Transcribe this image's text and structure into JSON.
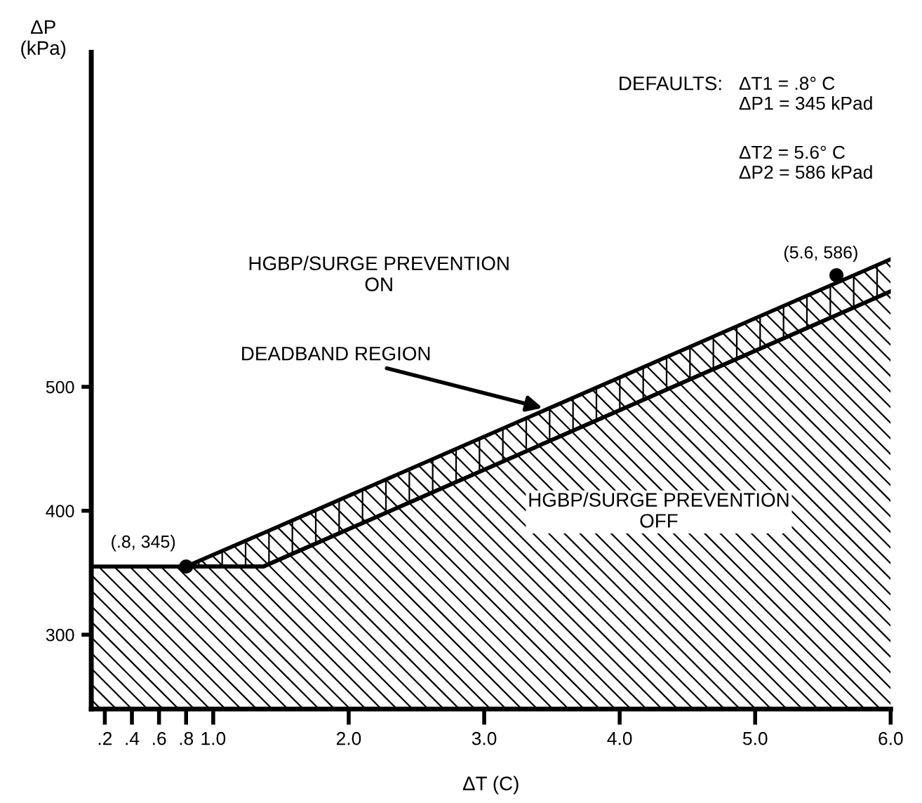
{
  "chart_data": {
    "type": "area",
    "xlabel": "ΔT (C)",
    "ylabel": "ΔP\n(kPa)",
    "xlim": [
      0.1,
      6.0
    ],
    "ylim": [
      240,
      770
    ],
    "xticks": [
      {
        "value": 0.2,
        "label": ".2"
      },
      {
        "value": 0.4,
        "label": ".4"
      },
      {
        "value": 0.6,
        "label": ".6"
      },
      {
        "value": 0.8,
        "label": ".8"
      },
      {
        "value": 1.0,
        "label": "1.0"
      },
      {
        "value": 2.0,
        "label": "2.0"
      },
      {
        "value": 3.0,
        "label": "3.0"
      },
      {
        "value": 4.0,
        "label": "4.0"
      },
      {
        "value": 5.0,
        "label": "5.0"
      },
      {
        "value": 6.0,
        "label": "6.0"
      }
    ],
    "yticks": [
      300,
      400,
      500
    ],
    "series": [
      {
        "color": "#000000",
        "x": [
          0.1,
          1.37,
          6.0
        ],
        "values": [
          355,
          355,
          577
        ]
      },
      {
        "type": "line",
        "color": "#000000",
        "x": [
          0.8,
          1.37,
          6.0
        ],
        "values": [
          355,
          382,
          603
        ],
        "lower": [
          355,
          355,
          577
        ],
        "upper": [
          355,
          382,
          603
        ]
      },
      {
        "type": "scatter",
        "color": "#000000",
        "x": [
          0.8,
          5.6
        ],
        "values": [
          355,
          590
        ]
      }
    ],
    "annotations": [
      {
        "text": "(.8, 345)",
        "x": 0.8,
        "y": 355
      },
      {
        "text": "(5.6, 586)",
        "x": 5.6,
        "y": 590
      },
      {
        "text": "DEADBAND REGION",
        "x": 3.43,
        "y": 483
      },
      "HGBP/SURGE PREVENTION\nON",
      "HGBP/SURGE PREVENTION\nOFF",
      "DEFAULTS:",
      "ΔT1 = .8° C\nΔP1 = 345 kPad",
      "ΔT2 = 5.6° C\nΔP2 = 586 kPad"
    ],
    "grid": false,
    "legend": false
  }
}
